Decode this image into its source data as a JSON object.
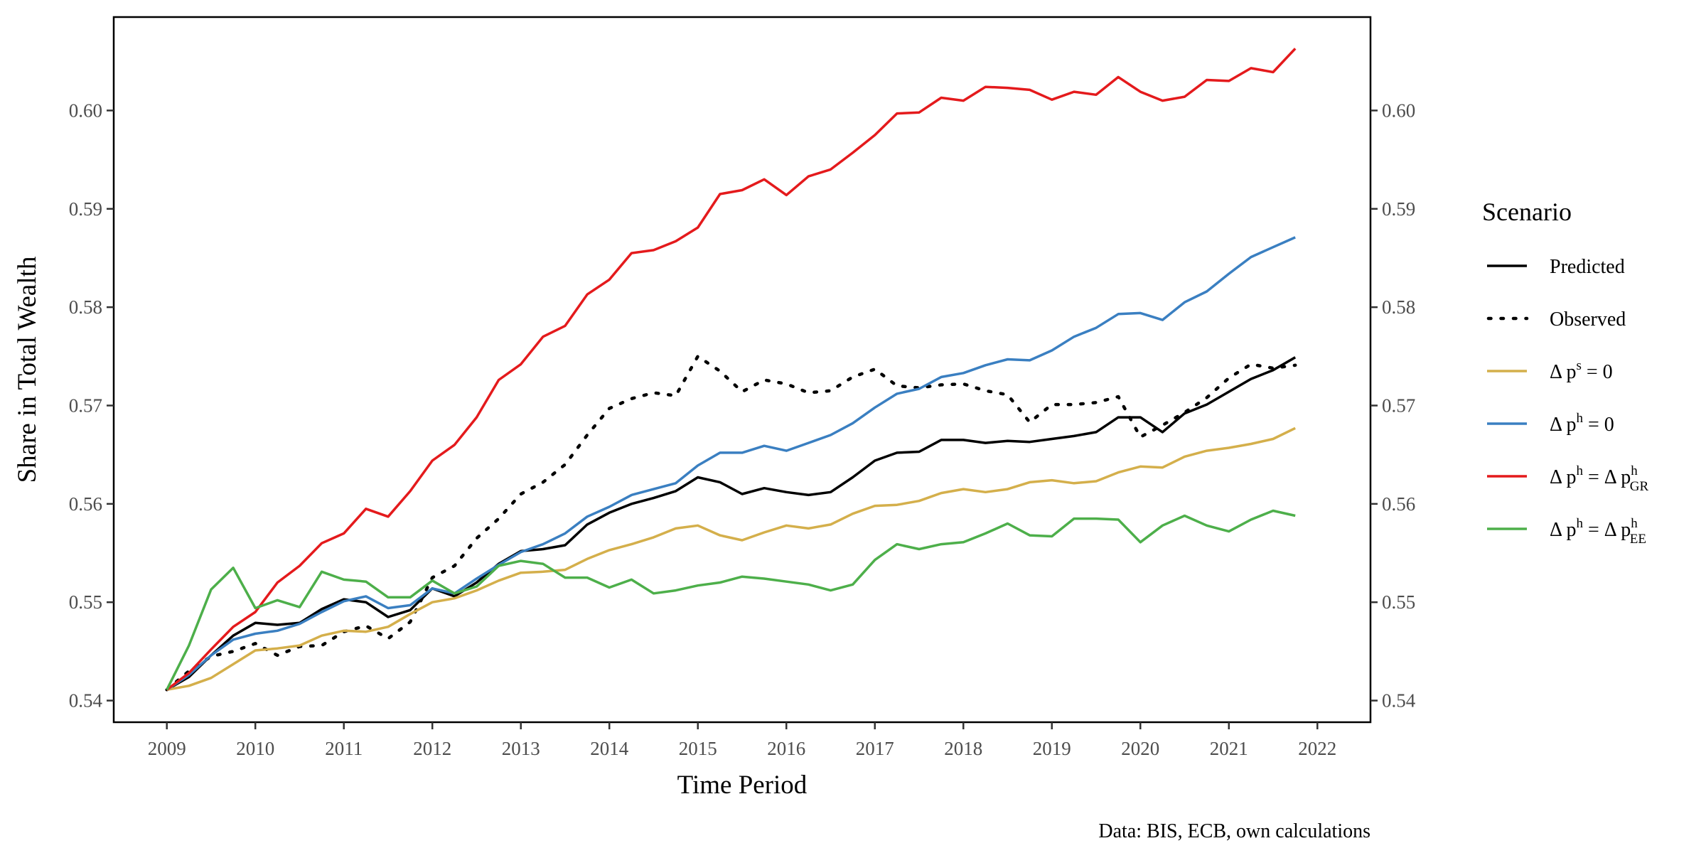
{
  "chart_data": {
    "type": "line",
    "title": "",
    "xlabel": "Time Period",
    "ylabel": "Share in Total Wealth",
    "caption": "Data: BIS, ECB, own calculations",
    "xlim": [
      2008.4,
      2022.6
    ],
    "ylim": [
      0.5378,
      0.6095
    ],
    "x_ticks": [
      2009,
      2010,
      2011,
      2012,
      2013,
      2014,
      2015,
      2016,
      2017,
      2018,
      2019,
      2020,
      2021,
      2022
    ],
    "y_ticks": [
      0.54,
      0.55,
      0.56,
      0.57,
      0.58,
      0.59,
      0.6
    ],
    "y_tick_labels": [
      "0.54",
      "0.55",
      "0.56",
      "0.57",
      "0.58",
      "0.59",
      "0.60"
    ],
    "secondary_y_axis": true,
    "grid": false,
    "x_start": 2009,
    "x_step": 0.25,
    "legend": {
      "title": "Scenario",
      "placement": "right"
    },
    "series": [
      {
        "name": "Predicted",
        "label_parts": [
          {
            "t": "Predicted"
          }
        ],
        "color": "#000000",
        "dash": "solid",
        "values": [
          0.5411,
          0.5424,
          0.5446,
          0.5466,
          0.5479,
          0.5477,
          0.5479,
          0.5493,
          0.5503,
          0.55,
          0.5485,
          0.5492,
          0.5514,
          0.5506,
          0.552,
          0.5539,
          0.5552,
          0.5554,
          0.5558,
          0.5579,
          0.5591,
          0.56,
          0.5606,
          0.5613,
          0.5627,
          0.5622,
          0.561,
          0.5616,
          0.5612,
          0.5609,
          0.5612,
          0.5627,
          0.5644,
          0.5652,
          0.5653,
          0.5665,
          0.5665,
          0.5662,
          0.5664,
          0.5663,
          0.5666,
          0.5669,
          0.5673,
          0.5688,
          0.5688,
          0.5673,
          0.5692,
          0.5701,
          0.5714,
          0.5727,
          0.5736,
          0.5749
        ]
      },
      {
        "name": "Observed",
        "label_parts": [
          {
            "t": "Observed"
          }
        ],
        "color": "#000000",
        "dash": "dotted",
        "values": [
          0.5411,
          0.543,
          0.5445,
          0.545,
          0.5458,
          0.5446,
          0.5455,
          0.5456,
          0.547,
          0.5476,
          0.5463,
          0.548,
          0.5525,
          0.5537,
          0.5565,
          0.5585,
          0.561,
          0.5622,
          0.564,
          0.567,
          0.5697,
          0.5707,
          0.5713,
          0.571,
          0.575,
          0.5735,
          0.5714,
          0.5726,
          0.5722,
          0.5713,
          0.5715,
          0.5729,
          0.5737,
          0.572,
          0.5718,
          0.5721,
          0.5722,
          0.5715,
          0.5711,
          0.5683,
          0.5701,
          0.5701,
          0.5703,
          0.5709,
          0.5668,
          0.568,
          0.5693,
          0.5708,
          0.5728,
          0.5742,
          0.5738,
          0.5741
        ]
      },
      {
        "name": "Δ p^s = 0",
        "label_parts": [
          {
            "t": "Δ p"
          },
          {
            "t": "s",
            "s": "sup"
          },
          {
            "t": " = 0"
          }
        ],
        "color": "#D4AF4B",
        "dash": "solid",
        "values": [
          0.5411,
          0.5415,
          0.5423,
          0.5437,
          0.5451,
          0.5453,
          0.5456,
          0.5466,
          0.5471,
          0.547,
          0.5475,
          0.5488,
          0.55,
          0.5504,
          0.5512,
          0.5522,
          0.553,
          0.5531,
          0.5533,
          0.5544,
          0.5553,
          0.5559,
          0.5566,
          0.5575,
          0.5578,
          0.5568,
          0.5563,
          0.5571,
          0.5578,
          0.5575,
          0.5579,
          0.559,
          0.5598,
          0.5599,
          0.5603,
          0.5611,
          0.5615,
          0.5612,
          0.5615,
          0.5622,
          0.5624,
          0.5621,
          0.5623,
          0.5632,
          0.5638,
          0.5637,
          0.5648,
          0.5654,
          0.5657,
          0.5661,
          0.5666,
          0.5677
        ]
      },
      {
        "name": "Δ p^h = 0",
        "label_parts": [
          {
            "t": "Δ p"
          },
          {
            "t": "h",
            "s": "sup"
          },
          {
            "t": " = 0"
          }
        ],
        "color": "#3A7FC1",
        "dash": "solid",
        "values": [
          0.5411,
          0.5426,
          0.5446,
          0.5462,
          0.5468,
          0.5471,
          0.5478,
          0.549,
          0.5501,
          0.5506,
          0.5494,
          0.5497,
          0.5514,
          0.5509,
          0.5524,
          0.5538,
          0.5551,
          0.5559,
          0.557,
          0.5587,
          0.5597,
          0.5609,
          0.5615,
          0.5621,
          0.5639,
          0.5652,
          0.5652,
          0.5659,
          0.5654,
          0.5662,
          0.567,
          0.5682,
          0.5698,
          0.5712,
          0.5717,
          0.5729,
          0.5733,
          0.5741,
          0.5747,
          0.5746,
          0.5756,
          0.577,
          0.5779,
          0.5793,
          0.5794,
          0.5787,
          0.5805,
          0.5816,
          0.5834,
          0.5851,
          0.5861,
          0.5871
        ]
      },
      {
        "name": "Δ p^h = Δ p^h_GR",
        "label_parts": [
          {
            "t": "Δ p"
          },
          {
            "t": "h",
            "s": "sup"
          },
          {
            "t": " = Δ p"
          },
          {
            "t": "h",
            "s": "sup"
          },
          {
            "t": "GR",
            "s": "sub"
          }
        ],
        "color": "#E41A1C",
        "dash": "solid",
        "values": [
          0.5411,
          0.5428,
          0.5452,
          0.5475,
          0.549,
          0.552,
          0.5537,
          0.556,
          0.557,
          0.5595,
          0.5587,
          0.5613,
          0.5644,
          0.566,
          0.5688,
          0.5726,
          0.5742,
          0.577,
          0.5781,
          0.5813,
          0.5828,
          0.5855,
          0.5858,
          0.5867,
          0.5881,
          0.5915,
          0.5919,
          0.593,
          0.5914,
          0.5933,
          0.594,
          0.5957,
          0.5975,
          0.5997,
          0.5998,
          0.6013,
          0.601,
          0.6024,
          0.6023,
          0.6021,
          0.6011,
          0.6019,
          0.6016,
          0.6034,
          0.6019,
          0.601,
          0.6014,
          0.6031,
          0.603,
          0.6043,
          0.6039,
          0.6063
        ]
      },
      {
        "name": "Δ p^h = Δ p^h_EE",
        "label_parts": [
          {
            "t": "Δ p"
          },
          {
            "t": "h",
            "s": "sup"
          },
          {
            "t": " = Δ p"
          },
          {
            "t": "h",
            "s": "sup"
          },
          {
            "t": "EE",
            "s": "sub"
          }
        ],
        "color": "#4DAF4A",
        "dash": "solid",
        "values": [
          0.5411,
          0.5456,
          0.5513,
          0.5535,
          0.5494,
          0.5502,
          0.5495,
          0.5531,
          0.5523,
          0.5521,
          0.5505,
          0.5505,
          0.5522,
          0.5509,
          0.5516,
          0.5537,
          0.5542,
          0.5539,
          0.5525,
          0.5525,
          0.5515,
          0.5523,
          0.5509,
          0.5512,
          0.5517,
          0.552,
          0.5526,
          0.5524,
          0.5521,
          0.5518,
          0.5512,
          0.5518,
          0.5543,
          0.5559,
          0.5554,
          0.5559,
          0.5561,
          0.557,
          0.558,
          0.5568,
          0.5567,
          0.5585,
          0.5585,
          0.5584,
          0.5561,
          0.5578,
          0.5588,
          0.5578,
          0.5572,
          0.5584,
          0.5593,
          0.5588
        ]
      }
    ]
  }
}
